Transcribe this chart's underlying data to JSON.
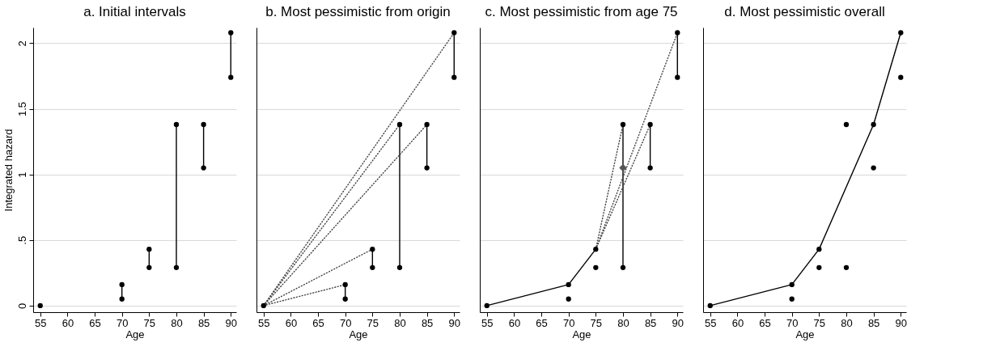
{
  "chart_data": [
    {
      "type": "line",
      "title": "a. Initial intervals",
      "xlabel": "Age",
      "ylabel": "Integrated hazard",
      "xlim": [
        53.7,
        91
      ],
      "ylim": [
        -0.05,
        2.12
      ],
      "xticks": [
        55,
        60,
        65,
        70,
        75,
        80,
        85,
        90
      ],
      "yticks": [
        0,
        {
          "value": 0.5,
          "label": ".5"
        },
        1,
        1.5,
        2
      ],
      "grid": "y",
      "series": [
        {
          "type": "line",
          "line_style": "solid",
          "color": "#000000",
          "x": [
            70,
            70
          ],
          "values": [
            0.05,
            0.16
          ]
        },
        {
          "type": "line",
          "line_style": "solid",
          "color": "#000000",
          "x": [
            75,
            75
          ],
          "values": [
            0.29,
            0.43
          ]
        },
        {
          "type": "line",
          "line_style": "solid",
          "color": "#000000",
          "x": [
            80,
            80
          ],
          "values": [
            0.29,
            1.38
          ]
        },
        {
          "type": "line",
          "line_style": "solid",
          "color": "#000000",
          "x": [
            85,
            85
          ],
          "values": [
            1.05,
            1.38
          ]
        },
        {
          "type": "line",
          "line_style": "solid",
          "color": "#000000",
          "x": [
            90,
            90
          ],
          "values": [
            1.74,
            2.08
          ]
        },
        {
          "type": "scatter",
          "marker": "circle",
          "color": "#000000",
          "x": [
            55,
            70,
            70,
            75,
            75,
            80,
            80,
            85,
            85,
            90,
            90
          ],
          "values": [
            0,
            0.05,
            0.16,
            0.29,
            0.43,
            0.29,
            1.38,
            1.05,
            1.38,
            1.74,
            2.08
          ]
        }
      ]
    },
    {
      "type": "line",
      "title": "b. Most pessimistic from origin",
      "xlabel": "Age",
      "xlim": [
        53.7,
        91
      ],
      "ylim": [
        -0.05,
        2.12
      ],
      "xticks": [
        55,
        60,
        65,
        70,
        75,
        80,
        85,
        90
      ],
      "yticks": [
        0,
        0.5,
        1,
        1.5,
        2
      ],
      "grid": "y",
      "tick_labels": "x",
      "series": [
        {
          "type": "line",
          "line_style": "solid",
          "color": "#000000",
          "x": [
            70,
            70
          ],
          "values": [
            0.05,
            0.16
          ]
        },
        {
          "type": "line",
          "line_style": "solid",
          "color": "#000000",
          "x": [
            75,
            75
          ],
          "values": [
            0.29,
            0.43
          ]
        },
        {
          "type": "line",
          "line_style": "solid",
          "color": "#000000",
          "x": [
            80,
            80
          ],
          "values": [
            0.29,
            1.38
          ]
        },
        {
          "type": "line",
          "line_style": "solid",
          "color": "#000000",
          "x": [
            85,
            85
          ],
          "values": [
            1.05,
            1.38
          ]
        },
        {
          "type": "line",
          "line_style": "solid",
          "color": "#000000",
          "x": [
            90,
            90
          ],
          "values": [
            1.74,
            2.08
          ]
        },
        {
          "type": "line",
          "line_style": "dotted",
          "color": "#444444",
          "x": [
            55,
            70
          ],
          "values": [
            0,
            0.16
          ]
        },
        {
          "type": "line",
          "line_style": "dotted",
          "color": "#444444",
          "x": [
            55,
            75
          ],
          "values": [
            0,
            0.43
          ]
        },
        {
          "type": "line",
          "line_style": "dotted",
          "color": "#444444",
          "x": [
            55,
            80
          ],
          "values": [
            0,
            1.38
          ]
        },
        {
          "type": "line",
          "line_style": "dotted",
          "color": "#444444",
          "x": [
            55,
            85
          ],
          "values": [
            0,
            1.38
          ]
        },
        {
          "type": "line",
          "line_style": "dotted",
          "color": "#444444",
          "x": [
            55,
            90
          ],
          "values": [
            0,
            2.08
          ]
        },
        {
          "type": "scatter",
          "marker": "circle",
          "color": "#000000",
          "x": [
            55,
            70,
            70,
            75,
            75,
            80,
            80,
            85,
            85,
            90,
            90
          ],
          "values": [
            0,
            0.05,
            0.16,
            0.29,
            0.43,
            0.29,
            1.38,
            1.05,
            1.38,
            1.74,
            2.08
          ]
        }
      ]
    },
    {
      "type": "line",
      "title": "c. Most pessimistic from age 75",
      "xlabel": "Age",
      "xlim": [
        53.7,
        91
      ],
      "ylim": [
        -0.05,
        2.12
      ],
      "xticks": [
        55,
        60,
        65,
        70,
        75,
        80,
        85,
        90
      ],
      "yticks": [
        0,
        0.5,
        1,
        1.5,
        2
      ],
      "grid": "y",
      "tick_labels": "x",
      "series": [
        {
          "type": "line",
          "line_style": "solid",
          "color": "#000000",
          "x": [
            80,
            80
          ],
          "values": [
            0.29,
            1.38
          ]
        },
        {
          "type": "line",
          "line_style": "solid",
          "color": "#000000",
          "x": [
            85,
            85
          ],
          "values": [
            1.05,
            1.38
          ]
        },
        {
          "type": "line",
          "line_style": "solid",
          "color": "#000000",
          "x": [
            90,
            90
          ],
          "values": [
            1.74,
            2.08
          ]
        },
        {
          "type": "line",
          "line_style": "solid",
          "color": "#000000",
          "x": [
            55,
            70,
            75
          ],
          "values": [
            0,
            0.16,
            0.43
          ]
        },
        {
          "type": "line",
          "line_style": "dotted",
          "color": "#444444",
          "x": [
            75,
            80
          ],
          "values": [
            0.43,
            1.38
          ]
        },
        {
          "type": "line",
          "line_style": "dotted",
          "color": "#444444",
          "x": [
            75,
            85
          ],
          "values": [
            0.43,
            1.38
          ]
        },
        {
          "type": "line",
          "line_style": "dotted",
          "color": "#444444",
          "x": [
            75,
            90
          ],
          "values": [
            0.43,
            2.08
          ]
        },
        {
          "type": "scatter",
          "marker": "circle",
          "color": "#000000",
          "x": [
            55,
            70,
            70,
            75,
            75,
            80,
            80,
            85,
            85,
            90,
            90
          ],
          "values": [
            0,
            0.05,
            0.16,
            0.29,
            0.43,
            0.29,
            1.38,
            1.05,
            1.38,
            1.74,
            2.08
          ]
        },
        {
          "type": "scatter",
          "marker": "diamond",
          "color": "#555555",
          "x": [
            80
          ],
          "values": [
            1.05
          ]
        }
      ]
    },
    {
      "type": "line",
      "title": "d. Most pessimistic overall",
      "xlabel": "Age",
      "xlim": [
        53.7,
        91
      ],
      "ylim": [
        -0.05,
        2.12
      ],
      "xticks": [
        55,
        60,
        65,
        70,
        75,
        80,
        85,
        90
      ],
      "yticks": [
        0,
        0.5,
        1,
        1.5,
        2
      ],
      "grid": "y",
      "tick_labels": "x",
      "series": [
        {
          "type": "line",
          "line_style": "solid",
          "color": "#000000",
          "x": [
            55,
            70,
            75,
            85,
            90
          ],
          "values": [
            0,
            0.16,
            0.43,
            1.38,
            2.08
          ]
        },
        {
          "type": "scatter",
          "marker": "circle",
          "color": "#000000",
          "x": [
            55,
            70,
            70,
            75,
            75,
            80,
            80,
            85,
            85,
            90,
            90
          ],
          "values": [
            0,
            0.05,
            0.16,
            0.29,
            0.43,
            0.29,
            1.38,
            1.05,
            1.38,
            1.74,
            2.08
          ]
        }
      ]
    }
  ]
}
